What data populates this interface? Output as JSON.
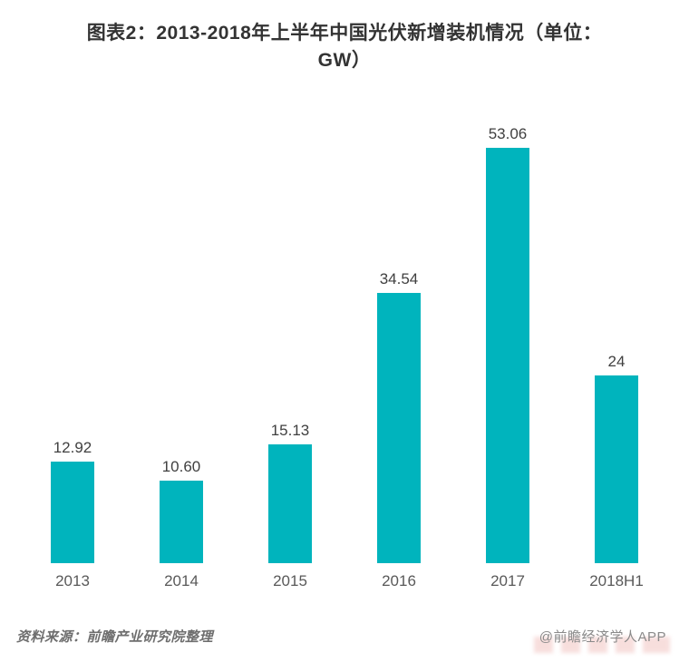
{
  "header": {
    "title": "图表2：2013-2018年上半年中国光伏新增装机情况（单位：\nGW）"
  },
  "chart_data": {
    "type": "bar",
    "title": "图表2：2013-2018年上半年中国光伏新增装机情况（单位：GW）",
    "categories": [
      "2013",
      "2014",
      "2015",
      "2016",
      "2017",
      "2018H1"
    ],
    "values": [
      12.92,
      10.6,
      15.13,
      34.54,
      53.06,
      24
    ],
    "value_labels": [
      "12.92",
      "10.60",
      "15.13",
      "34.54",
      "53.06",
      "24"
    ],
    "unit": "GW",
    "xlabel": "",
    "ylabel": "",
    "ylim": [
      0,
      55
    ],
    "bar_color": "#00b4bd",
    "grid": false,
    "legend": false,
    "data_labels_position": "above-bars"
  },
  "footer": {
    "source": "资料来源：前瞻产业研究院整理",
    "credit": "@前瞻经济学人APP"
  },
  "colors": {
    "accent": "#00b4bd",
    "title_text": "#333333",
    "value_text": "#404040",
    "axis_text": "#595959",
    "source_text": "#6e6e6e",
    "credit_text": "#8a8a8a",
    "watermark_pink": "#e79894"
  }
}
